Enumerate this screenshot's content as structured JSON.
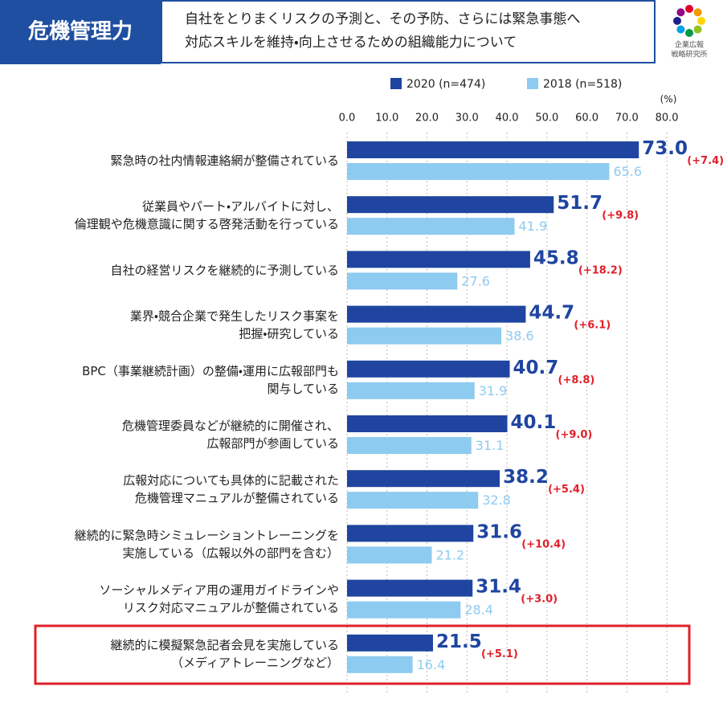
{
  "chart_data": {
    "type": "hbar",
    "title": "危機管理力",
    "subtitle": [
      "自社をとりまくリスクの予測と、その予防、さらには緊急事態へ",
      "対応スキルを維持・向上させるための組織能力について"
    ],
    "logo_text": [
      "企業広報",
      "戦略研究所"
    ],
    "unit": "(%)",
    "categories": [
      [
        "緊急時の社内情報連絡網が整備されている"
      ],
      [
        "従業員やパート・アルバイトに対し、",
        "倫理観や危機意識に関する啓発活動を行っている"
      ],
      [
        "自社の経営リスクを継続的に予測している"
      ],
      [
        "業界・競合企業で発生したリスク事案を",
        "把握・研究している"
      ],
      [
        "BPC（事業継続計画）の整備・運用に広報部門も",
        "関与している"
      ],
      [
        "危機管理委員などが継続的に開催され、",
        "広報部門が参画している"
      ],
      [
        "広報対応についても具体的に記載された",
        "危機管理マニュアルが整備されている"
      ],
      [
        "継続的に緊急時シミュレーショントレーニングを",
        "実施している（広報以外の部門を含む）"
      ],
      [
        "ソーシャルメディア用の運用ガイドラインや",
        "リスク対応マニュアルが整備されている"
      ],
      [
        "継続的に模擬緊急記者会見を実施している",
        "（メディアトレーニングなど）"
      ]
    ],
    "series": [
      {
        "name": "2020 (n=474)",
        "color": "#1f45a0",
        "values": [
          73.0,
          51.7,
          45.8,
          44.7,
          40.7,
          40.1,
          38.2,
          31.6,
          31.4,
          21.5
        ],
        "value_labels": [
          "73.0",
          "51.7",
          "45.8",
          "44.7",
          "40.7",
          "40.1",
          "38.2",
          "31.6",
          "31.4",
          "21.5"
        ]
      },
      {
        "name": "2018 (n=518)",
        "color": "#8ecbf0",
        "values": [
          65.6,
          41.9,
          27.6,
          38.6,
          31.9,
          31.1,
          32.8,
          21.2,
          28.4,
          16.4
        ]
      }
    ],
    "annotations": [
      "(+7.4)",
      "(+9.8)",
      "(+18.2)",
      "(+6.1)",
      "(+8.8)",
      "(+9.0)",
      "(+5.4)",
      "(+10.4)",
      "(+3.0)",
      "(+5.1)"
    ],
    "annotation_color": "#e0202a",
    "xlim": [
      0,
      84
    ],
    "xticks": [
      {
        "value": 0,
        "label": "0.0"
      },
      {
        "value": 10,
        "label": "10.0"
      },
      {
        "value": 20,
        "label": "20.0"
      },
      {
        "value": 30,
        "label": "30.0"
      },
      {
        "value": 40,
        "label": "40.0"
      },
      {
        "value": 50,
        "label": "50.0"
      },
      {
        "value": 60,
        "label": "60.0"
      },
      {
        "value": 70,
        "label": "70.0"
      },
      {
        "value": 80,
        "label": "80.0"
      }
    ],
    "grid": true
  }
}
